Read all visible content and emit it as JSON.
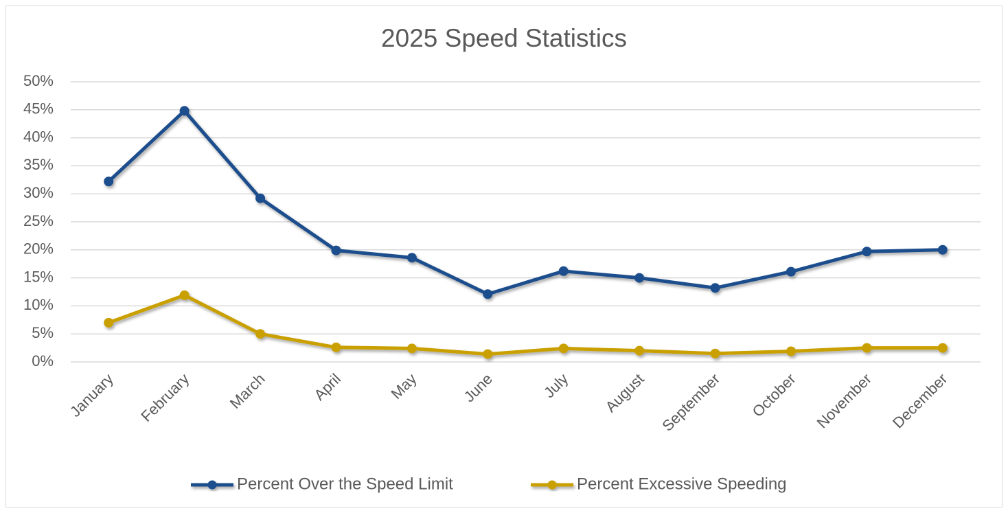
{
  "chart_data": {
    "type": "line",
    "title": "2025 Speed Statistics",
    "categories": [
      "January",
      "February",
      "March",
      "April",
      "May",
      "June",
      "July",
      "August",
      "September",
      "October",
      "November",
      "December"
    ],
    "series": [
      {
        "name": "Percent Over the Speed Limit",
        "color": "#1f4e8c",
        "values": [
          32.2,
          44.8,
          29.2,
          19.9,
          18.6,
          12.1,
          16.2,
          15.0,
          13.2,
          16.1,
          19.7,
          20.0
        ]
      },
      {
        "name": "Percent Excessive Speeding",
        "color": "#c9a000",
        "values": [
          7.0,
          11.9,
          5.0,
          2.6,
          2.4,
          1.4,
          2.4,
          2.0,
          1.5,
          1.9,
          2.5,
          2.5
        ]
      }
    ],
    "ylim": [
      0,
      50
    ],
    "yticks": [
      {
        "value": 0,
        "label": "0%"
      },
      {
        "value": 5,
        "label": "5%"
      },
      {
        "value": 10,
        "label": "10%"
      },
      {
        "value": 15,
        "label": "15%"
      },
      {
        "value": 20,
        "label": "20%"
      },
      {
        "value": 25,
        "label": "25%"
      },
      {
        "value": 30,
        "label": "30%"
      },
      {
        "value": 35,
        "label": "35%"
      },
      {
        "value": 40,
        "label": "40%"
      },
      {
        "value": 45,
        "label": "45%"
      },
      {
        "value": 50,
        "label": "50%"
      }
    ],
    "grid": true,
    "legend": "bottom"
  }
}
